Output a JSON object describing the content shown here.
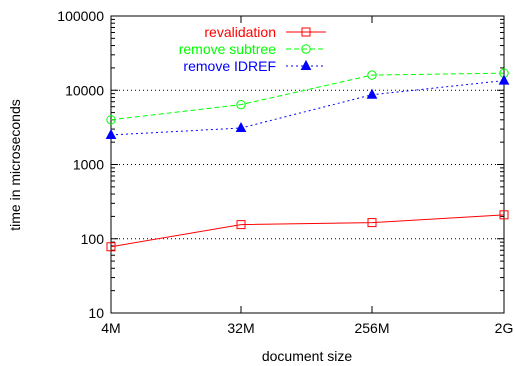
{
  "chart_data": {
    "type": "line",
    "title": "",
    "xlabel": "document size",
    "ylabel": "time in microseconds",
    "y_scale": "log",
    "ylim": [
      10,
      100000
    ],
    "y_ticks": [
      10,
      100,
      1000,
      10000,
      100000
    ],
    "y_tick_labels": [
      "10",
      "100",
      "1000",
      "10000",
      "100000"
    ],
    "categories": [
      "4M",
      "32M",
      "256M",
      "2G"
    ],
    "grid": "horizontal dotted at 100, 1000, 10000",
    "legend_position": "top-left",
    "series": [
      {
        "name": "revalidation",
        "color": "#ff0000",
        "marker": "square",
        "dash": "solid",
        "values": [
          78,
          155,
          165,
          210
        ]
      },
      {
        "name": "remove subtree",
        "color": "#00ff00",
        "marker": "circle",
        "dash": "dashed",
        "values": [
          4000,
          6400,
          16000,
          17000
        ]
      },
      {
        "name": "remove IDREF",
        "color": "#0000ff",
        "marker": "triangle",
        "dash": "dotted",
        "values": [
          2500,
          3100,
          8700,
          13500
        ]
      }
    ]
  }
}
